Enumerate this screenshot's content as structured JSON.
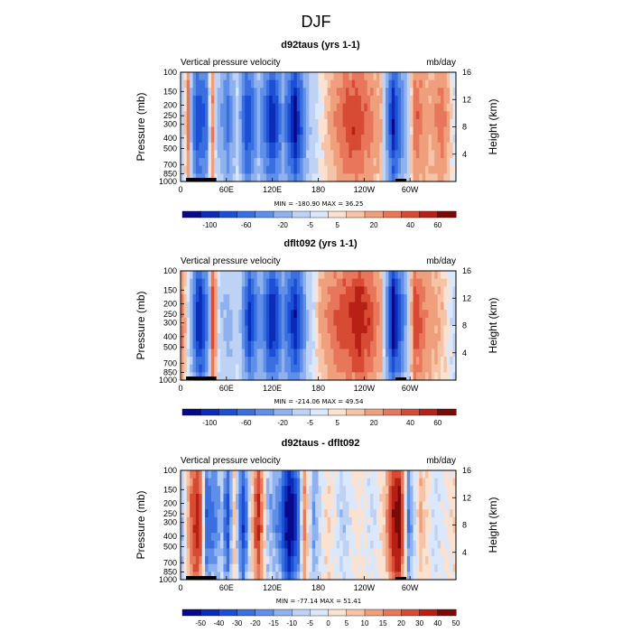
{
  "page_title": "DJF",
  "cbar1": {
    "colors": [
      "#08088a",
      "#0b2bb8",
      "#1b4fd6",
      "#3a6fe0",
      "#5f8fe8",
      "#8fb2ef",
      "#bed2f5",
      "#dbe8fb",
      "#fbe1cf",
      "#f6c3a6",
      "#f09f7c",
      "#e8765a",
      "#d74a33",
      "#b82016",
      "#7a0a06"
    ],
    "labels": [
      "-100",
      "-60",
      "-20",
      "-5",
      "5",
      "20",
      "40",
      "60"
    ]
  },
  "cbar3": {
    "colors": [
      "#08088a",
      "#0b2bb8",
      "#1b4fd6",
      "#3a6fe0",
      "#5f8fe8",
      "#8fb2ef",
      "#bed2f5",
      "#dbe8fb",
      "#fbe1cf",
      "#f6c3a6",
      "#f09f7c",
      "#e8765a",
      "#d74a33",
      "#b82016",
      "#7a0a06"
    ],
    "labels": [
      "-50",
      "-40",
      "-30",
      "-20",
      "-15",
      "-10",
      "-5",
      "0",
      "5",
      "10",
      "15",
      "20",
      "30",
      "40",
      "50"
    ]
  },
  "chart_data": [
    {
      "type": "heatmap",
      "title": "d92taus (yrs 1-1)",
      "left_label": "Vertical pressure velocity",
      "right_label": "mb/day",
      "ylabel": "Pressure (mb)",
      "y2label": "Height (km)",
      "y_ticks": [
        "100",
        "150",
        "200",
        "250",
        "300",
        "400",
        "500",
        "700",
        "850",
        "1000"
      ],
      "y2_ticks": [
        "4",
        "8",
        "12",
        "16"
      ],
      "x_ticks": [
        "0",
        "60E",
        "120E",
        "180",
        "120W",
        "60W"
      ],
      "stats": "MIN = -180.90   MAX =  36.25",
      "min": -180.9,
      "max": 36.25,
      "bands": [
        {
          "lon": 0,
          "v": -15
        },
        {
          "lon": 8,
          "v": 25
        },
        {
          "lon": 18,
          "v": -90
        },
        {
          "lon": 32,
          "v": -70
        },
        {
          "lon": 38,
          "v": 30
        },
        {
          "lon": 46,
          "v": -20
        },
        {
          "lon": 60,
          "v": -60
        },
        {
          "lon": 72,
          "v": -8
        },
        {
          "lon": 85,
          "v": -95
        },
        {
          "lon": 100,
          "v": -30
        },
        {
          "lon": 118,
          "v": -110
        },
        {
          "lon": 132,
          "v": -40
        },
        {
          "lon": 148,
          "v": -120
        },
        {
          "lon": 165,
          "v": -20
        },
        {
          "lon": 178,
          "v": -3
        },
        {
          "lon": 195,
          "v": 12
        },
        {
          "lon": 212,
          "v": 30
        },
        {
          "lon": 228,
          "v": 36
        },
        {
          "lon": 245,
          "v": 22
        },
        {
          "lon": 262,
          "v": 8
        },
        {
          "lon": 276,
          "v": -110
        },
        {
          "lon": 290,
          "v": -40
        },
        {
          "lon": 305,
          "v": 30
        },
        {
          "lon": 322,
          "v": 10
        },
        {
          "lon": 340,
          "v": 25
        },
        {
          "lon": 360,
          "v": -10
        }
      ]
    },
    {
      "type": "heatmap",
      "title": "dflt092 (yrs 1-1)",
      "left_label": "Vertical pressure velocity",
      "right_label": "mb/day",
      "ylabel": "Pressure (mb)",
      "y2label": "Height (km)",
      "y_ticks": [
        "100",
        "150",
        "200",
        "250",
        "300",
        "400",
        "500",
        "700",
        "850",
        "1000"
      ],
      "y2_ticks": [
        "4",
        "8",
        "12",
        "16"
      ],
      "x_ticks": [
        "0",
        "60E",
        "120E",
        "180",
        "120W",
        "60W"
      ],
      "stats": "MIN = -214.06   MAX =  49.54",
      "min": -214.06,
      "max": 49.54,
      "bands": [
        {
          "lon": 0,
          "v": 20
        },
        {
          "lon": 10,
          "v": -10
        },
        {
          "lon": 22,
          "v": -120
        },
        {
          "lon": 34,
          "v": -50
        },
        {
          "lon": 40,
          "v": 35
        },
        {
          "lon": 50,
          "v": -15
        },
        {
          "lon": 62,
          "v": -25
        },
        {
          "lon": 74,
          "v": -5
        },
        {
          "lon": 88,
          "v": -100
        },
        {
          "lon": 102,
          "v": -35
        },
        {
          "lon": 118,
          "v": -115
        },
        {
          "lon": 132,
          "v": -45
        },
        {
          "lon": 148,
          "v": -110
        },
        {
          "lon": 165,
          "v": -15
        },
        {
          "lon": 180,
          "v": 10
        },
        {
          "lon": 198,
          "v": 25
        },
        {
          "lon": 215,
          "v": 35
        },
        {
          "lon": 232,
          "v": 45
        },
        {
          "lon": 248,
          "v": 30
        },
        {
          "lon": 262,
          "v": 12
        },
        {
          "lon": 276,
          "v": -130
        },
        {
          "lon": 290,
          "v": -50
        },
        {
          "lon": 304,
          "v": 35
        },
        {
          "lon": 322,
          "v": 15
        },
        {
          "lon": 340,
          "v": 8
        },
        {
          "lon": 360,
          "v": -10
        }
      ]
    },
    {
      "type": "heatmap",
      "title": "d92taus - dflt092",
      "left_label": "Vertical pressure velocity",
      "right_label": "mb/day",
      "ylabel": "Pressure (mb)",
      "y2label": "Height (km)",
      "y_ticks": [
        "100",
        "150",
        "200",
        "250",
        "300",
        "400",
        "500",
        "700",
        "850",
        "1000"
      ],
      "y2_ticks": [
        "4",
        "8",
        "12",
        "16"
      ],
      "x_ticks": [
        "0",
        "60E",
        "120E",
        "180",
        "120W",
        "60W"
      ],
      "stats": "MIN = -77.14   MAX =  51.41",
      "min": -77.14,
      "max": 51.41,
      "bands": [
        {
          "lon": 0,
          "v": -10
        },
        {
          "lon": 12,
          "v": 20
        },
        {
          "lon": 22,
          "v": 35
        },
        {
          "lon": 32,
          "v": -25
        },
        {
          "lon": 42,
          "v": -20
        },
        {
          "lon": 52,
          "v": -10
        },
        {
          "lon": 60,
          "v": -30
        },
        {
          "lon": 68,
          "v": 5
        },
        {
          "lon": 80,
          "v": -35
        },
        {
          "lon": 92,
          "v": 8
        },
        {
          "lon": 100,
          "v": 30
        },
        {
          "lon": 112,
          "v": -10
        },
        {
          "lon": 128,
          "v": -20
        },
        {
          "lon": 140,
          "v": -60
        },
        {
          "lon": 150,
          "v": -35
        },
        {
          "lon": 160,
          "v": 15
        },
        {
          "lon": 172,
          "v": -15
        },
        {
          "lon": 190,
          "v": 5
        },
        {
          "lon": 210,
          "v": -8
        },
        {
          "lon": 230,
          "v": 3
        },
        {
          "lon": 250,
          "v": -5
        },
        {
          "lon": 266,
          "v": 8
        },
        {
          "lon": 276,
          "v": 35
        },
        {
          "lon": 284,
          "v": 45
        },
        {
          "lon": 296,
          "v": -20
        },
        {
          "lon": 312,
          "v": 10
        },
        {
          "lon": 330,
          "v": -5
        },
        {
          "lon": 360,
          "v": 5
        }
      ]
    }
  ]
}
